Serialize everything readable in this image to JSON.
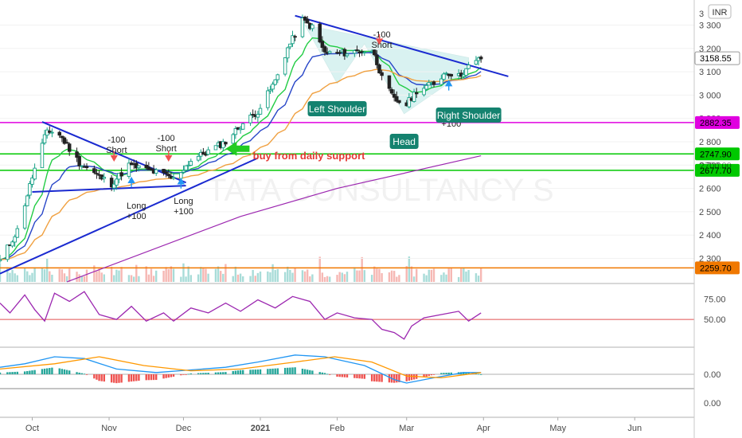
{
  "currency": "INR",
  "watermark": "TATA CONSULTANCY S",
  "price_axis": {
    "ticks": [
      2300,
      2400,
      2500,
      2600,
      2700,
      2800,
      2900,
      3000,
      3100,
      3200,
      3300
    ],
    "last_price": "3158.55",
    "top_partial": "3"
  },
  "rsi_axis": {
    "ticks": [
      "75.00",
      "50.00"
    ]
  },
  "macd_axis": {
    "ticks": [
      "0.00",
      "0.00"
    ]
  },
  "time_axis": {
    "labels": [
      {
        "text": "Oct",
        "bold": false
      },
      {
        "text": "Nov",
        "bold": false
      },
      {
        "text": "Dec",
        "bold": false
      },
      {
        "text": "2021",
        "bold": true
      },
      {
        "text": "Feb",
        "bold": false
      },
      {
        "text": "Mar",
        "bold": false
      },
      {
        "text": "Apr",
        "bold": false
      },
      {
        "text": "May",
        "bold": false
      },
      {
        "text": "Jun",
        "bold": false
      }
    ]
  },
  "levels": [
    {
      "price": 2882.35,
      "label": "2882.35",
      "color": "#e000e0"
    },
    {
      "price": 2747.9,
      "label": "2747.90",
      "color": "#00c800"
    },
    {
      "price": 2677.7,
      "label": "2677.70",
      "color": "#00c800"
    },
    {
      "price": 2259.7,
      "label": "2259.70",
      "color": "#f07800"
    }
  ],
  "hidden_level_label": "2700.00",
  "annotations": {
    "short_1": [
      "-100",
      "Short"
    ],
    "short_2": [
      "-100",
      "Short"
    ],
    "short_3": [
      "-100",
      "Short"
    ],
    "long_1": [
      "Long",
      "+100"
    ],
    "long_2": [
      "Long",
      "+100"
    ],
    "long_3": [
      "Long",
      "+100"
    ],
    "buy_text": "buy from daily support",
    "left_shoulder": "Left Shoulder",
    "head": "Head",
    "right_shoulder": "Right Shoulder"
  },
  "colors": {
    "up": "#26a69a",
    "down": "#ef5350",
    "ema_fast": "#22cc44",
    "ema_mid": "#2846c8",
    "ema_slow": "#f0a040",
    "ma_long": "#9c27b0",
    "trendline": "#1a2ad0",
    "rsi": "#9c27b0",
    "rsi_mid": "#e05050",
    "macd": "#2196f3",
    "signal": "#ff9800",
    "buy_text": "#e53935",
    "buy_arrow": "#22cc22",
    "zone_fill": "#7ad4d0"
  },
  "chart_data": {
    "type": "candlestick",
    "symbol_hint": "TATA CONSULTANCY S",
    "ylim": [
      2220,
      3380
    ],
    "rsi_ylim": [
      20,
      90
    ],
    "x_range_start": "2020-09-18",
    "x_range_end": "2021-06-25",
    "months": [
      "2020-10",
      "2020-11",
      "2020-12",
      "2021-01",
      "2021-02",
      "2021-03",
      "2021-04",
      "2021-05",
      "2021-06"
    ],
    "waypoints": [
      [
        "2020-09-18",
        2290
      ],
      [
        "2020-09-25",
        2420
      ],
      [
        "2020-10-01",
        2650
      ],
      [
        "2020-10-07",
        2850
      ],
      [
        "2020-10-12",
        2830
      ],
      [
        "2020-10-20",
        2710
      ],
      [
        "2020-10-28",
        2650
      ],
      [
        "2020-11-02",
        2620
      ],
      [
        "2020-11-09",
        2700
      ],
      [
        "2020-11-16",
        2680
      ],
      [
        "2020-11-23",
        2660
      ],
      [
        "2020-11-27",
        2640
      ],
      [
        "2020-12-04",
        2720
      ],
      [
        "2020-12-11",
        2760
      ],
      [
        "2020-12-18",
        2800
      ],
      [
        "2020-12-24",
        2870
      ],
      [
        "2020-12-31",
        2930
      ],
      [
        "2021-01-07",
        3060
      ],
      [
        "2021-01-12",
        3200
      ],
      [
        "2021-01-18",
        3320
      ],
      [
        "2021-01-22",
        3290
      ],
      [
        "2021-01-27",
        3180
      ],
      [
        "2021-02-01",
        3180
      ],
      [
        "2021-02-05",
        3180
      ],
      [
        "2021-02-10",
        3190
      ],
      [
        "2021-02-16",
        3180
      ],
      [
        "2021-02-19",
        3070
      ],
      [
        "2021-02-24",
        2980
      ],
      [
        "2021-03-01",
        2960
      ],
      [
        "2021-03-05",
        3020
      ],
      [
        "2021-03-12",
        3050
      ],
      [
        "2021-03-17",
        3100
      ],
      [
        "2021-03-22",
        3080
      ],
      [
        "2021-03-26",
        3120
      ],
      [
        "2021-03-31",
        3158
      ]
    ],
    "trendlines": [
      [
        [
          "2020-10-05",
          2885
        ],
        [
          "2020-12-02",
          2625
        ]
      ],
      [
        [
          "2020-10-01",
          2585
        ],
        [
          "2020-12-02",
          2612
        ]
      ],
      [
        [
          "2020-09-18",
          2235
        ],
        [
          "2020-12-31",
          2730
        ]
      ],
      [
        [
          "2021-01-15",
          3340
        ],
        [
          "2021-04-11",
          3080
        ]
      ]
    ],
    "sma_long": [
      [
        "2020-10-15",
        2200
      ],
      [
        "2020-12-24",
        2480
      ],
      [
        "2021-02-01",
        2600
      ],
      [
        "2021-03-31",
        2740
      ]
    ],
    "rsi_points": [
      [
        "2020-09-18",
        70
      ],
      [
        "2020-09-22",
        58
      ],
      [
        "2020-09-28",
        80
      ],
      [
        "2020-10-02",
        62
      ],
      [
        "2020-10-06",
        48
      ],
      [
        "2020-10-10",
        82
      ],
      [
        "2020-10-16",
        72
      ],
      [
        "2020-10-22",
        84
      ],
      [
        "2020-10-28",
        56
      ],
      [
        "2020-11-04",
        50
      ],
      [
        "2020-11-10",
        66
      ],
      [
        "2020-11-16",
        48
      ],
      [
        "2020-11-23",
        58
      ],
      [
        "2020-11-27",
        48
      ],
      [
        "2020-12-04",
        64
      ],
      [
        "2020-12-11",
        58
      ],
      [
        "2020-12-18",
        70
      ],
      [
        "2020-12-24",
        60
      ],
      [
        "2020-12-31",
        74
      ],
      [
        "2021-01-07",
        64
      ],
      [
        "2021-01-14",
        78
      ],
      [
        "2021-01-21",
        72
      ],
      [
        "2021-01-27",
        50
      ],
      [
        "2021-02-01",
        58
      ],
      [
        "2021-02-08",
        52
      ],
      [
        "2021-02-15",
        50
      ],
      [
        "2021-02-19",
        38
      ],
      [
        "2021-02-24",
        34
      ],
      [
        "2021-02-28",
        26
      ],
      [
        "2021-03-03",
        42
      ],
      [
        "2021-03-08",
        52
      ],
      [
        "2021-03-15",
        56
      ],
      [
        "2021-03-22",
        60
      ],
      [
        "2021-03-26",
        48
      ],
      [
        "2021-03-31",
        58
      ]
    ],
    "macd_points": [
      [
        "2020-09-18",
        8
      ],
      [
        "2020-09-28",
        12
      ],
      [
        "2020-10-10",
        20
      ],
      [
        "2020-10-22",
        18
      ],
      [
        "2020-11-04",
        6
      ],
      [
        "2020-11-20",
        2
      ],
      [
        "2020-12-04",
        5
      ],
      [
        "2020-12-18",
        8
      ],
      [
        "2020-12-31",
        14
      ],
      [
        "2021-01-15",
        22
      ],
      [
        "2021-01-27",
        20
      ],
      [
        "2021-02-12",
        10
      ],
      [
        "2021-02-24",
        -6
      ],
      [
        "2021-03-01",
        -10
      ],
      [
        "2021-03-12",
        -4
      ],
      [
        "2021-03-24",
        2
      ],
      [
        "2021-03-31",
        2
      ]
    ],
    "signal_points": [
      [
        "2020-09-18",
        6
      ],
      [
        "2020-10-10",
        12
      ],
      [
        "2020-10-28",
        20
      ],
      [
        "2020-11-15",
        10
      ],
      [
        "2020-12-04",
        4
      ],
      [
        "2020-12-24",
        6
      ],
      [
        "2021-01-15",
        14
      ],
      [
        "2021-01-31",
        20
      ],
      [
        "2021-02-15",
        14
      ],
      [
        "2021-03-01",
        -2
      ],
      [
        "2021-03-15",
        -4
      ],
      [
        "2021-03-31",
        2
      ]
    ],
    "annotation_dates": {
      "short_1": "2020-11-04",
      "short_2": "2020-11-24",
      "short_3": "2021-02-19",
      "long_1": "2020-11-12",
      "long_2": "2020-12-01",
      "long_3": "2021-03-19",
      "buy_arrow": "2020-12-18",
      "buy_text": "2020-12-29",
      "left_shoulder": "2021-02-01",
      "head": "2021-02-28",
      "right_shoulder": "2021-03-26"
    }
  }
}
